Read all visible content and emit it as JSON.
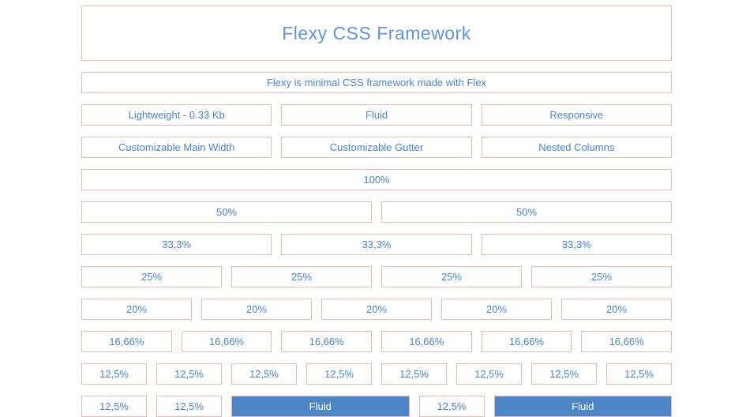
{
  "page": {
    "title": "Flexy CSS Framework",
    "subtitle": "Flexy is minimal CSS framework made with Flex"
  },
  "colors": {
    "box_border": "#f0b6ad",
    "label_blue": "#4a82d2",
    "title_blue": "#5f93dc",
    "fluid_fill": "#4d86c6",
    "fluid_text": "#ffffff"
  },
  "feature_rows": [
    {
      "name": "feature-row-1",
      "cells": [
        {
          "label": "Lightweight - 0.33 Kb",
          "width": "33"
        },
        {
          "label": "Fluid",
          "width": "33"
        },
        {
          "label": "Responsive",
          "width": "33"
        }
      ]
    },
    {
      "name": "feature-row-2",
      "cells": [
        {
          "label": "Customizable Main Width",
          "width": "33"
        },
        {
          "label": "Customizable Gutter",
          "width": "33"
        },
        {
          "label": "Nested Columns",
          "width": "33"
        }
      ]
    }
  ],
  "grid_rows": [
    {
      "name": "row-full",
      "cells": [
        {
          "label": "100%",
          "width": "100"
        }
      ]
    },
    {
      "name": "row-halves",
      "cells": [
        {
          "label": "50%",
          "width": "50"
        },
        {
          "label": "50%",
          "width": "50"
        }
      ]
    },
    {
      "name": "row-thirds",
      "cells": [
        {
          "label": "33,3%",
          "width": "33"
        },
        {
          "label": "33,3%",
          "width": "33"
        },
        {
          "label": "33,3%",
          "width": "33"
        }
      ]
    },
    {
      "name": "row-quarters",
      "cells": [
        {
          "label": "25%",
          "width": "25"
        },
        {
          "label": "25%",
          "width": "25"
        },
        {
          "label": "25%",
          "width": "25"
        },
        {
          "label": "25%",
          "width": "25"
        }
      ]
    },
    {
      "name": "row-fifths",
      "cells": [
        {
          "label": "20%",
          "width": "20"
        },
        {
          "label": "20%",
          "width": "20"
        },
        {
          "label": "20%",
          "width": "20"
        },
        {
          "label": "20%",
          "width": "20"
        },
        {
          "label": "20%",
          "width": "20"
        }
      ]
    },
    {
      "name": "row-sixths",
      "cells": [
        {
          "label": "16,66%",
          "width": "16"
        },
        {
          "label": "16,66%",
          "width": "16"
        },
        {
          "label": "16,66%",
          "width": "16"
        },
        {
          "label": "16,66%",
          "width": "16"
        },
        {
          "label": "16,66%",
          "width": "16"
        },
        {
          "label": "16,66%",
          "width": "16"
        }
      ]
    },
    {
      "name": "row-eighths",
      "cells": [
        {
          "label": "12,5%",
          "width": "12"
        },
        {
          "label": "12,5%",
          "width": "12"
        },
        {
          "label": "12,5%",
          "width": "12"
        },
        {
          "label": "12,5%",
          "width": "12"
        },
        {
          "label": "12,5%",
          "width": "12"
        },
        {
          "label": "12,5%",
          "width": "12"
        },
        {
          "label": "12,5%",
          "width": "12"
        },
        {
          "label": "12,5%",
          "width": "12"
        }
      ]
    },
    {
      "name": "row-mixed-fluid",
      "cells": [
        {
          "label": "12,5%",
          "width": "12"
        },
        {
          "label": "12,5%",
          "width": "12"
        },
        {
          "label": "Fluid",
          "width": "fluid"
        },
        {
          "label": "12,5%",
          "width": "12"
        },
        {
          "label": "Fluid",
          "width": "fluid"
        }
      ]
    }
  ]
}
